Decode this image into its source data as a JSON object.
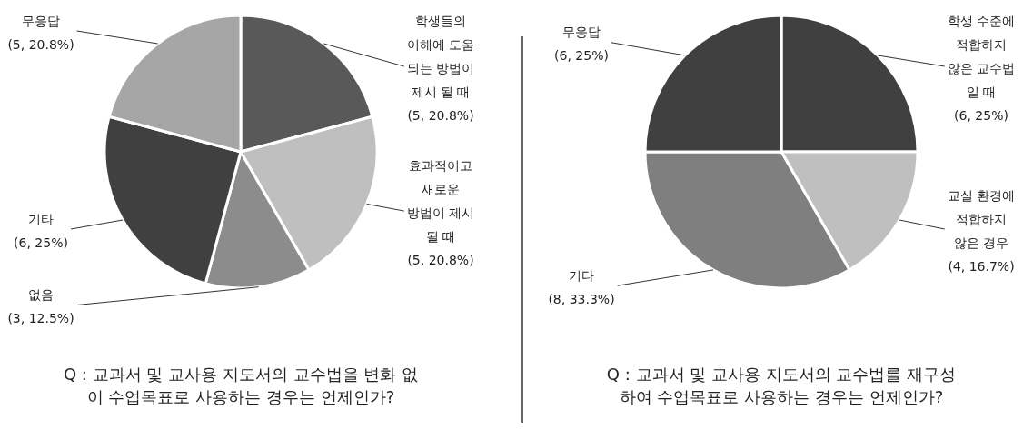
{
  "chart_data": [
    {
      "type": "pie",
      "title": "Q : 교과서 및 교사용 지도서의 교수법을 변화 없이 수업목표로 사용하는 경우는 언제인가?",
      "categories": [
        "학생들의\n이해에 도움\n되는 방법이\n제시 될 때",
        "효과적이고\n새로운\n방법이 제시\n될 때",
        "없음",
        "기타",
        "무응답"
      ],
      "values": [
        5,
        5,
        3,
        6,
        5
      ],
      "colors": [
        "#595959",
        "#bfbfbf",
        "#8c8c8c",
        "#404040",
        "#a6a6a6"
      ],
      "value_labels": [
        "(5, 20.8%)",
        "(5, 20.8%)",
        "(3, 12.5%)",
        "(6, 25%)",
        "(5, 20.8%)"
      ]
    },
    {
      "type": "pie",
      "title": "Q : 교과서 및 교사용 지도서의 교수법를 재구성 하여 수업목표로 사용하는 경우는 언제인가?",
      "categories": [
        "학생 수준에\n적합하지\n않은 교수법\n일 때",
        "교실 환경에\n적합하지\n않은 경우",
        "기타",
        "무응답"
      ],
      "values": [
        6,
        4,
        8,
        6
      ],
      "colors": [
        "#404040",
        "#bfbfbf",
        "#7f7f7f",
        "#404040"
      ],
      "value_labels": [
        "(6, 25%)",
        "(4, 16.7%)",
        "(8, 33.3%)",
        "(6, 25%)"
      ]
    }
  ]
}
